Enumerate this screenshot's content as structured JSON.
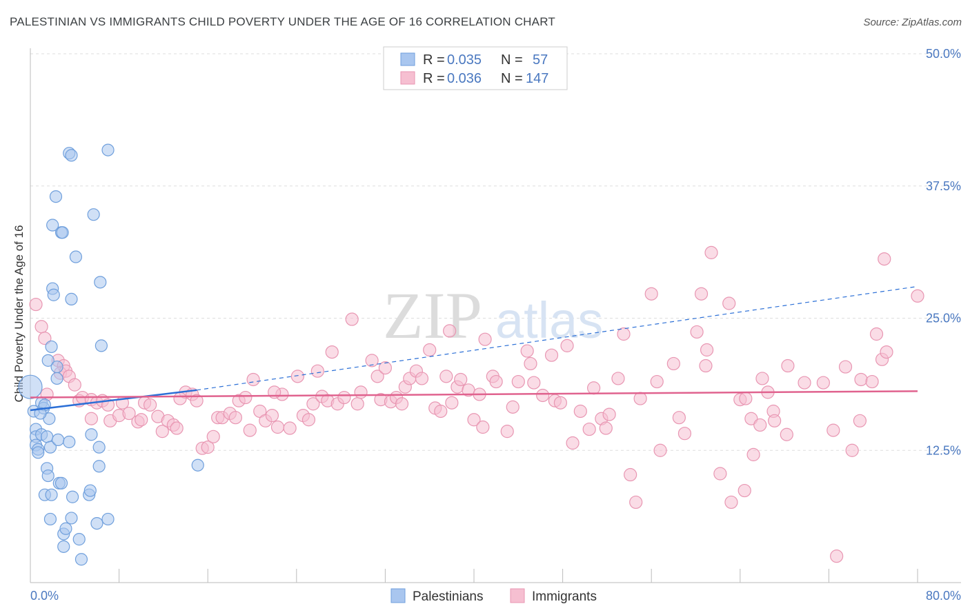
{
  "title": "PALESTINIAN VS IMMIGRANTS CHILD POVERTY UNDER THE AGE OF 16 CORRELATION CHART",
  "source": "Source: ZipAtlas.com",
  "watermark": {
    "zip": "ZIP",
    "atlas": "atlas"
  },
  "colors": {
    "blue_fill": "#a9c6ef",
    "blue_stroke": "#6f9fdc",
    "blue_line": "#2b6fd6",
    "pink_fill": "#f6bfd1",
    "pink_stroke": "#e896b2",
    "pink_line": "#e0628e",
    "accent_text": "#4a78c0",
    "grid": "#dddddd"
  },
  "legend": {
    "r_label": "R =",
    "n_label": "N =",
    "series": [
      {
        "r": "0.035",
        "n": "57"
      },
      {
        "r": "0.036",
        "n": "147"
      }
    ]
  },
  "chart_data": {
    "type": "scatter",
    "title": "PALESTINIAN VS IMMIGRANTS CHILD POVERTY UNDER THE AGE OF 16 CORRELATION CHART",
    "xlabel": "",
    "ylabel": "Child Poverty Under the Age of 16",
    "xlim": [
      0,
      80
    ],
    "ylim": [
      0,
      50
    ],
    "x_tick_labels": [
      "0.0%",
      "80.0%"
    ],
    "y_ticks": [
      12.5,
      25.0,
      37.5,
      50.0
    ],
    "y_tick_labels": [
      "12.5%",
      "25.0%",
      "37.5%",
      "50.0%"
    ],
    "grid": true,
    "legend_position": "top-center",
    "series": [
      {
        "name": "Palestinians",
        "r": 0.035,
        "n": 57,
        "trend": {
          "x_solid": [
            0,
            15
          ],
          "y_solid": [
            16.3,
            18.2
          ],
          "x_dashed": [
            15,
            80
          ],
          "y_dashed": [
            18.2,
            28.0
          ]
        },
        "points": [
          [
            0.0,
            18.5
          ],
          [
            0.3,
            16.2
          ],
          [
            0.5,
            14.5
          ],
          [
            0.5,
            13.8
          ],
          [
            0.5,
            13.0
          ],
          [
            0.7,
            12.6
          ],
          [
            0.7,
            12.3
          ],
          [
            1.0,
            17.0
          ],
          [
            1.0,
            14.0
          ],
          [
            1.2,
            16.5
          ],
          [
            1.3,
            16.8
          ],
          [
            1.5,
            13.8
          ],
          [
            1.5,
            10.8
          ],
          [
            1.7,
            15.5
          ],
          [
            1.3,
            8.3
          ],
          [
            1.6,
            10.1
          ],
          [
            1.8,
            12.8
          ],
          [
            1.6,
            21.0
          ],
          [
            1.9,
            22.3
          ],
          [
            1.9,
            8.3
          ],
          [
            1.8,
            6.0
          ],
          [
            2.0,
            27.8
          ],
          [
            2.0,
            33.8
          ],
          [
            2.3,
            36.5
          ],
          [
            2.4,
            20.4
          ],
          [
            2.4,
            19.3
          ],
          [
            2.5,
            13.5
          ],
          [
            2.6,
            9.4
          ],
          [
            2.8,
            9.4
          ],
          [
            2.8,
            33.1
          ],
          [
            2.9,
            33.1
          ],
          [
            3.0,
            4.6
          ],
          [
            3.0,
            3.4
          ],
          [
            3.2,
            5.1
          ],
          [
            3.5,
            40.6
          ],
          [
            3.5,
            13.3
          ],
          [
            3.7,
            40.4
          ],
          [
            3.7,
            26.8
          ],
          [
            3.7,
            6.1
          ],
          [
            3.8,
            8.1
          ],
          [
            4.1,
            30.8
          ],
          [
            4.4,
            4.1
          ],
          [
            4.6,
            2.2
          ],
          [
            5.3,
            8.3
          ],
          [
            5.4,
            8.7
          ],
          [
            5.7,
            34.8
          ],
          [
            6.0,
            5.6
          ],
          [
            6.2,
            12.8
          ],
          [
            6.2,
            11.0
          ],
          [
            6.3,
            28.4
          ],
          [
            6.4,
            22.4
          ],
          [
            7.0,
            6.0
          ],
          [
            7.0,
            40.9
          ],
          [
            15.1,
            11.1
          ],
          [
            2.1,
            27.2
          ],
          [
            5.5,
            14.0
          ],
          [
            0.9,
            16.0
          ]
        ]
      },
      {
        "name": "Immigrants",
        "r": 0.036,
        "n": 147,
        "trend": {
          "x": [
            0,
            80
          ],
          "y": [
            17.5,
            18.1
          ]
        },
        "points": [
          [
            0.5,
            26.3
          ],
          [
            1.0,
            24.2
          ],
          [
            1.3,
            23.1
          ],
          [
            2.5,
            21.0
          ],
          [
            3.0,
            20.5
          ],
          [
            2.7,
            19.8
          ],
          [
            3.2,
            20.0
          ],
          [
            3.5,
            19.5
          ],
          [
            4.0,
            18.7
          ],
          [
            4.4,
            17.2
          ],
          [
            4.7,
            17.5
          ],
          [
            5.5,
            17.3
          ],
          [
            6.0,
            17.0
          ],
          [
            6.5,
            17.2
          ],
          [
            7.0,
            16.8
          ],
          [
            8.3,
            17.0
          ],
          [
            5.5,
            15.5
          ],
          [
            7.2,
            15.3
          ],
          [
            8.0,
            15.8
          ],
          [
            8.9,
            16.0
          ],
          [
            9.7,
            15.2
          ],
          [
            10.0,
            15.4
          ],
          [
            10.3,
            17.0
          ],
          [
            10.8,
            16.8
          ],
          [
            11.5,
            15.7
          ],
          [
            11.9,
            14.3
          ],
          [
            12.4,
            15.3
          ],
          [
            12.9,
            14.9
          ],
          [
            13.2,
            14.6
          ],
          [
            14.0,
            18.0
          ],
          [
            14.6,
            17.8
          ],
          [
            15.0,
            17.2
          ],
          [
            15.5,
            12.7
          ],
          [
            16.0,
            12.8
          ],
          [
            16.5,
            13.8
          ],
          [
            16.9,
            15.6
          ],
          [
            17.3,
            15.6
          ],
          [
            18.0,
            16.0
          ],
          [
            18.5,
            15.6
          ],
          [
            18.8,
            17.2
          ],
          [
            19.4,
            17.5
          ],
          [
            19.8,
            14.4
          ],
          [
            20.1,
            19.2
          ],
          [
            20.7,
            16.2
          ],
          [
            21.2,
            15.3
          ],
          [
            21.8,
            15.8
          ],
          [
            22.3,
            14.7
          ],
          [
            22.7,
            17.8
          ],
          [
            23.4,
            14.6
          ],
          [
            24.1,
            19.5
          ],
          [
            24.6,
            15.8
          ],
          [
            25.1,
            15.4
          ],
          [
            25.5,
            16.9
          ],
          [
            25.9,
            20.0
          ],
          [
            26.3,
            17.6
          ],
          [
            26.8,
            17.2
          ],
          [
            27.2,
            21.8
          ],
          [
            27.7,
            16.9
          ],
          [
            28.3,
            17.5
          ],
          [
            29.0,
            24.9
          ],
          [
            29.5,
            16.9
          ],
          [
            29.8,
            18.0
          ],
          [
            30.8,
            21.0
          ],
          [
            31.3,
            19.5
          ],
          [
            31.6,
            17.3
          ],
          [
            32.0,
            20.3
          ],
          [
            32.5,
            17.1
          ],
          [
            33.0,
            17.5
          ],
          [
            33.5,
            16.9
          ],
          [
            33.8,
            18.5
          ],
          [
            34.2,
            19.3
          ],
          [
            34.8,
            20.0
          ],
          [
            35.3,
            19.3
          ],
          [
            36.0,
            22.0
          ],
          [
            36.5,
            16.5
          ],
          [
            37.0,
            16.2
          ],
          [
            37.5,
            19.5
          ],
          [
            38.0,
            17.0
          ],
          [
            38.5,
            18.5
          ],
          [
            38.8,
            19.2
          ],
          [
            39.5,
            18.2
          ],
          [
            40.0,
            15.4
          ],
          [
            40.5,
            17.8
          ],
          [
            40.8,
            14.7
          ],
          [
            41.7,
            19.5
          ],
          [
            42.0,
            19.0
          ],
          [
            43.0,
            14.3
          ],
          [
            43.5,
            16.6
          ],
          [
            44.0,
            19.0
          ],
          [
            44.8,
            21.9
          ],
          [
            45.1,
            20.7
          ],
          [
            45.4,
            18.9
          ],
          [
            46.2,
            17.7
          ],
          [
            47.0,
            21.5
          ],
          [
            47.3,
            17.2
          ],
          [
            47.8,
            17.0
          ],
          [
            48.4,
            22.4
          ],
          [
            48.9,
            13.2
          ],
          [
            49.6,
            16.2
          ],
          [
            50.4,
            14.5
          ],
          [
            50.8,
            18.4
          ],
          [
            51.5,
            15.5
          ],
          [
            51.9,
            14.6
          ],
          [
            52.2,
            15.9
          ],
          [
            53.0,
            19.3
          ],
          [
            53.5,
            23.5
          ],
          [
            54.1,
            10.2
          ],
          [
            54.6,
            7.6
          ],
          [
            55.0,
            17.4
          ],
          [
            56.0,
            27.3
          ],
          [
            56.5,
            19.0
          ],
          [
            56.8,
            12.5
          ],
          [
            58.0,
            20.7
          ],
          [
            58.5,
            15.6
          ],
          [
            59.0,
            14.1
          ],
          [
            60.1,
            23.7
          ],
          [
            60.5,
            27.3
          ],
          [
            60.9,
            20.5
          ],
          [
            61.4,
            31.2
          ],
          [
            62.2,
            10.3
          ],
          [
            63.0,
            26.4
          ],
          [
            63.2,
            7.6
          ],
          [
            64.0,
            17.3
          ],
          [
            64.4,
            8.7
          ],
          [
            64.5,
            17.4
          ],
          [
            65.0,
            15.5
          ],
          [
            65.2,
            12.1
          ],
          [
            65.8,
            14.9
          ],
          [
            67.0,
            16.2
          ],
          [
            66.5,
            18.0
          ],
          [
            67.1,
            15.3
          ],
          [
            68.2,
            14.0
          ],
          [
            68.3,
            20.5
          ],
          [
            69.8,
            18.9
          ],
          [
            71.5,
            18.9
          ],
          [
            72.4,
            14.4
          ],
          [
            73.5,
            20.4
          ],
          [
            74.8,
            15.3
          ],
          [
            74.9,
            19.2
          ],
          [
            76.3,
            23.5
          ],
          [
            76.8,
            21.1
          ],
          [
            77.2,
            21.8
          ],
          [
            77.0,
            30.6
          ],
          [
            80.0,
            27.1
          ],
          [
            74.1,
            12.5
          ],
          [
            72.7,
            2.5
          ],
          [
            75.9,
            19.0
          ],
          [
            1.5,
            17.8
          ],
          [
            13.5,
            17.4
          ],
          [
            41.0,
            23.0
          ],
          [
            22.0,
            18.0
          ],
          [
            37.8,
            23.8
          ],
          [
            66.0,
            19.3
          ],
          [
            61.0,
            22.0
          ]
        ]
      }
    ]
  },
  "bottom_legend": {
    "palestinians": "Palestinians",
    "immigrants": "Immigrants"
  }
}
